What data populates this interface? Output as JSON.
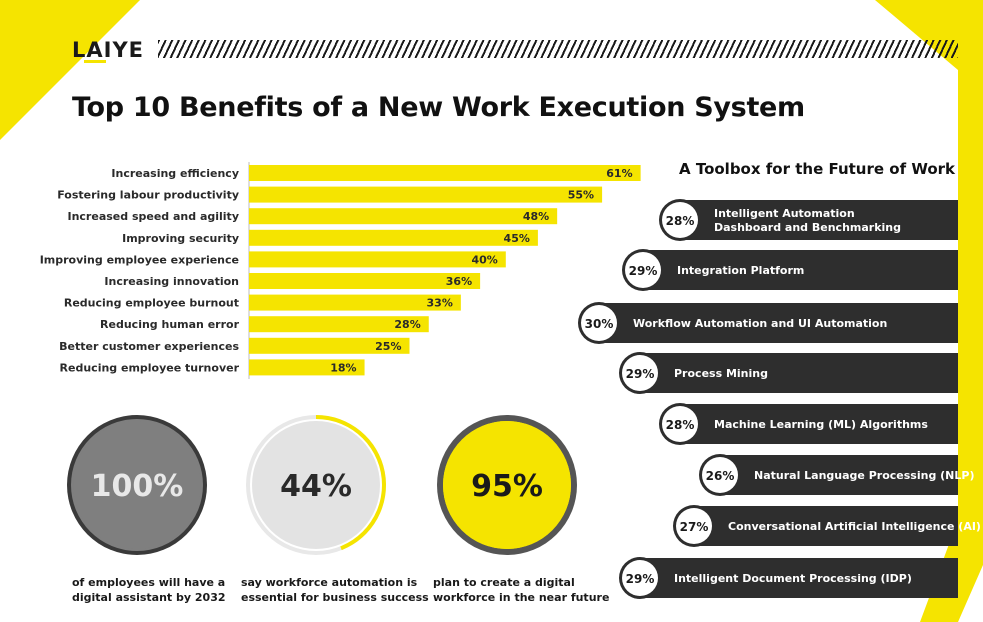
{
  "brand": {
    "logo_text": "LAIYE"
  },
  "colors": {
    "accent": "#f5e400",
    "dark": "#2e2e2e",
    "grey": "#7a7a7a",
    "light_grey": "#e3e3e3"
  },
  "chart_data": [
    {
      "type": "bar",
      "orientation": "horizontal",
      "title": "Top 10 Benefits of a New Work Execution System",
      "categories": [
        "Increasing efficiency",
        "Fostering labour productivity",
        "Increased speed and agility",
        "Improving security",
        "Improving employee experience",
        "Increasing innovation",
        "Reducing employee burnout",
        "Reducing human error",
        "Better customer experiences",
        "Reducing employee turnover"
      ],
      "values": [
        61,
        55,
        48,
        45,
        40,
        36,
        33,
        28,
        25,
        18
      ],
      "value_labels": [
        "61%",
        "55%",
        "48%",
        "45%",
        "40%",
        "36%",
        "33%",
        "28%",
        "25%",
        "18%"
      ],
      "xlim": [
        0,
        100
      ],
      "grid": false
    },
    {
      "type": "table",
      "title": "A Toolbox for the Future of Work",
      "rows": [
        {
          "value": 28,
          "value_label": "28%",
          "label_lines": [
            "Intelligent Automation",
            "Dashboard and Benchmarking"
          ]
        },
        {
          "value": 29,
          "value_label": "29%",
          "label_lines": [
            "Integration Platform"
          ]
        },
        {
          "value": 30,
          "value_label": "30%",
          "label_lines": [
            "Workflow Automation and UI Automation"
          ]
        },
        {
          "value": 29,
          "value_label": "29%",
          "label_lines": [
            "Process Mining"
          ]
        },
        {
          "value": 28,
          "value_label": "28%",
          "label_lines": [
            "Machine Learning (ML) Algorithms"
          ]
        },
        {
          "value": 26,
          "value_label": "26%",
          "label_lines": [
            "Natural Language Processing (NLP)"
          ]
        },
        {
          "value": 27,
          "value_label": "27%",
          "label_lines": [
            "Conversational Artificial Intelligence (AI)"
          ]
        },
        {
          "value": 29,
          "value_label": "29%",
          "label_lines": [
            "Intelligent Document Processing (IDP)"
          ]
        }
      ]
    },
    {
      "type": "pie",
      "style": "donut",
      "stats": [
        {
          "value": 100,
          "label": "100%",
          "caption_lines": [
            "of employees will have a",
            "digital assistant by 2032"
          ]
        },
        {
          "value": 44,
          "label": "44%",
          "caption_lines": [
            "say workforce automation is",
            "essential for business success"
          ]
        },
        {
          "value": 95,
          "label": "95%",
          "caption_lines": [
            "plan to create a digital",
            "workforce in the near future"
          ]
        }
      ]
    }
  ]
}
